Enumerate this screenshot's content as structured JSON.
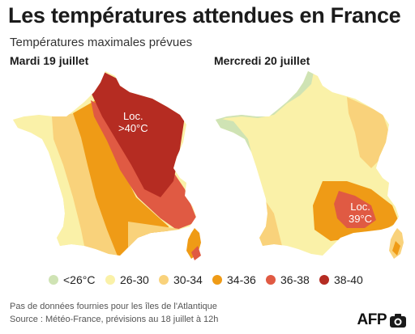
{
  "title": "Les températures attendues en France",
  "subtitle": "Températures maximales prévues",
  "maps": [
    {
      "day": "Mardi 19 juillet",
      "annotation_line1": "Loc.",
      "annotation_line2": ">40°C"
    },
    {
      "day": "Mercredi 20 juillet",
      "annotation_line1": "Loc.",
      "annotation_line2": "39°C"
    }
  ],
  "legend": [
    {
      "label": "<26°C",
      "color": "#cfe3b4"
    },
    {
      "label": "26-30",
      "color": "#faf1a8"
    },
    {
      "label": "30-34",
      "color": "#f9d27b"
    },
    {
      "label": "34-36",
      "color": "#ef9b16"
    },
    {
      "label": "36-38",
      "color": "#e05a43"
    },
    {
      "label": "38-40",
      "color": "#b52c22"
    }
  ],
  "footnote1": "Pas de données fournies pour les îles de l'Atlantique",
  "footnote2": "Source : Météo-France, prévisions au 18 juillet à 12h",
  "brand": "AFP"
}
